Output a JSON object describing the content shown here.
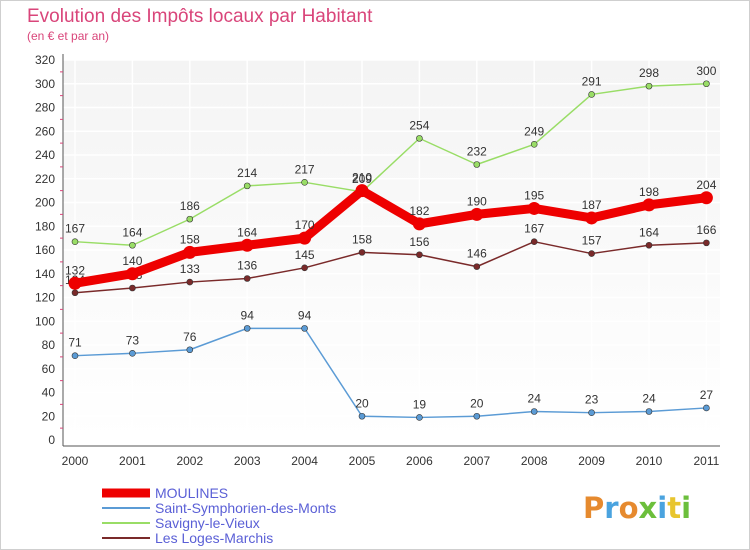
{
  "header": {
    "title": "Evolution des Impôts locaux par Habitant",
    "subtitle": "(en € et par an)"
  },
  "brand": {
    "logo_text": "Proxiti"
  },
  "colors": {
    "title": "#d9457a",
    "legend_text": "#5a5fd6",
    "plot_top": "#f4f4f4",
    "plot_bottom": "#ffffff",
    "grid": "#ffffff",
    "axis_text": "#333333"
  },
  "chart_data": {
    "type": "line",
    "x": [
      "2000",
      "2001",
      "2002",
      "2003",
      "2004",
      "2005",
      "2006",
      "2007",
      "2008",
      "2009",
      "2010",
      "2011"
    ],
    "ylim": [
      0,
      320
    ],
    "yticks": [
      0,
      20,
      40,
      60,
      80,
      100,
      120,
      140,
      160,
      180,
      200,
      220,
      240,
      260,
      280,
      300,
      320
    ],
    "grid": true,
    "legend_position": "bottom-left",
    "series": [
      {
        "name": "MOULINES",
        "values": [
          132,
          140,
          158,
          164,
          170,
          210,
          182,
          190,
          195,
          187,
          198,
          204
        ],
        "color": "#ee0000",
        "emphasis": true
      },
      {
        "name": "Saint-Symphorien-des-Monts",
        "values": [
          71,
          73,
          76,
          94,
          94,
          20,
          19,
          20,
          24,
          23,
          24,
          27
        ],
        "color": "#5b9bd5",
        "emphasis": false
      },
      {
        "name": "Savigny-le-Vieux",
        "values": [
          167,
          164,
          186,
          214,
          217,
          209,
          254,
          232,
          249,
          291,
          298,
          300
        ],
        "color": "#99dd66",
        "emphasis": false
      },
      {
        "name": "Les Loges-Marchis",
        "values": [
          124,
          128,
          133,
          136,
          145,
          158,
          156,
          146,
          167,
          157,
          164,
          166
        ],
        "color": "#7a2a2a",
        "emphasis": false
      }
    ]
  }
}
